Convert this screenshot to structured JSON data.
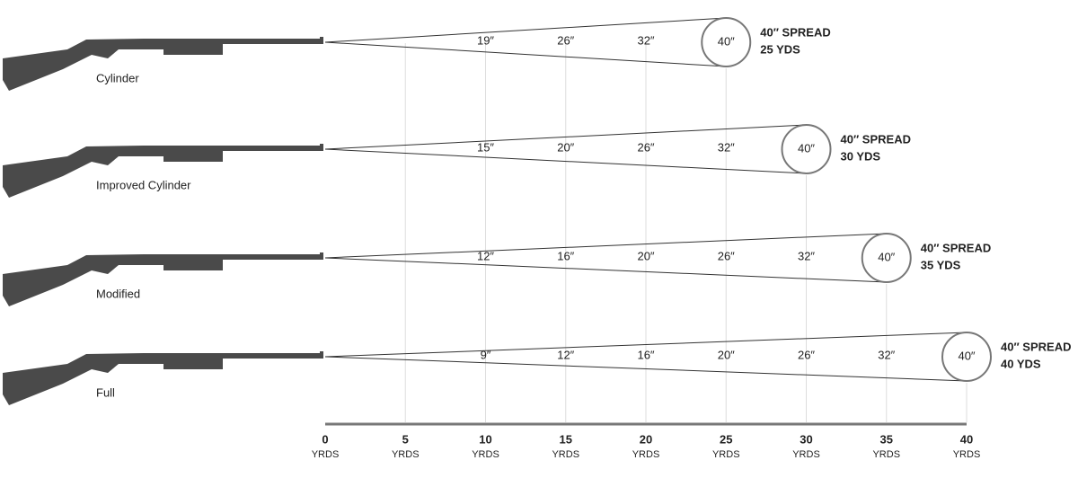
{
  "axis": {
    "ticks": [
      "0",
      "5",
      "10",
      "15",
      "20",
      "25",
      "30",
      "35",
      "40"
    ],
    "unit": "YRDS"
  },
  "rows": [
    {
      "choke": "Cylinder",
      "spreads": [
        "19″",
        "26″",
        "32″"
      ],
      "circle": "40″",
      "spread_label": "40″ SPREAD",
      "range_label": "25 YDS"
    },
    {
      "choke": "Improved Cylinder",
      "spreads": [
        "15″",
        "20″",
        "26″",
        "32″"
      ],
      "circle": "40″",
      "spread_label": "40″ SPREAD",
      "range_label": "30 YDS"
    },
    {
      "choke": "Modified",
      "spreads": [
        "12″",
        "16″",
        "20″",
        "26″",
        "32″"
      ],
      "circle": "40″",
      "spread_label": "40″ SPREAD",
      "range_label": "35 YDS"
    },
    {
      "choke": "Full",
      "spreads": [
        "9″",
        "12″",
        "16″",
        "20″",
        "26″",
        "32″"
      ],
      "circle": "40″",
      "spread_label": "40″ SPREAD",
      "range_label": "40 YDS"
    }
  ]
}
